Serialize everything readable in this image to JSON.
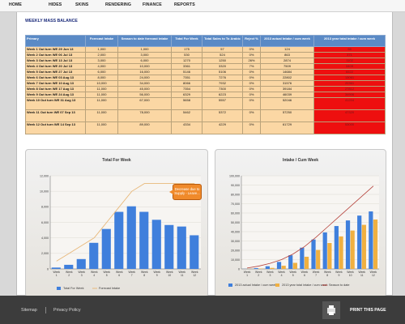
{
  "nav": {
    "items": [
      "HOME",
      "HIDES",
      "SKINS",
      "RENDERING",
      "FINANCE",
      "REPORTS"
    ]
  },
  "page": {
    "title": "WEEKLY MASS BALANCE"
  },
  "table": {
    "headers": [
      "Primary",
      "Forecast Intake",
      "Season to date forecast intake",
      "Total For Week",
      "Total Sales to To Arabic",
      "Reject %",
      "2013 actual Intake / cum week",
      "2013 year total intake / cum week"
    ],
    "rows": [
      [
        "Week 1 Out turn WE 29 Jun 13",
        "1,000",
        "1,000",
        "175",
        "57",
        "0%",
        "124",
        "98"
      ],
      [
        "Week 2 Out turn WE 06 Jul 13",
        "2,000",
        "3,000",
        "530",
        "524",
        "0%",
        "863",
        "371"
      ],
      [
        "Week 3 Out turn WE 13 Jul 13",
        "3,000",
        "6,000",
        "1270",
        "1250",
        "26%",
        "2874",
        "1102"
      ],
      [
        "Week 4 Out turn WE 20 Jul 13",
        "4,000",
        "10,000",
        "3361",
        "3320",
        "7%",
        "7509",
        "3409"
      ],
      [
        "Week 5 Out turn WE 27 Jul 13",
        "6,000",
        "16,000",
        "5146",
        "5106",
        "0%",
        "14684",
        "6522"
      ],
      [
        "Week 6 Out turn WE 03 Aug 13",
        "8,000",
        "24,000",
        "7351",
        "7276",
        "0%",
        "22802",
        "13061"
      ],
      [
        "Week 7 Out turn WE 10 Aug 13",
        "10,000",
        "34,000",
        "8066",
        "7932",
        "0%",
        "31576",
        "20361"
      ],
      [
        "Week 8 Out turn WE 17 Aug 13",
        "11,000",
        "45,000",
        "7354",
        "7300",
        "0%",
        "39184",
        "27812"
      ],
      [
        "Week 9 Out turn WE 24 Aug 13",
        "11,000",
        "56,000",
        "6329",
        "6223",
        "0%",
        "46039",
        "34906"
      ],
      [
        "Week 10 Out turn WE 31 Aug 13",
        "11,000",
        "67,000",
        "5658",
        "5557",
        "0%",
        "52046",
        "41204"
      ],
      [
        "Week 11 Out turn WE 07 Sep 13",
        "11,000",
        "78,000",
        "5462",
        "5372",
        "0%",
        "57250",
        "47320"
      ],
      [
        "Week 12 Out turn WE 14 Sep 13",
        "11,000",
        "89,000",
        "4334",
        "4229",
        "0%",
        "61729",
        "53000"
      ]
    ]
  },
  "callout": {
    "text": "Decrease due to Supply - Leave..."
  },
  "chart_data": [
    {
      "type": "bar",
      "title": "Total For Week",
      "categories": [
        "Week 1",
        "Week 2",
        "Week 3",
        "Week 4",
        "Week 5",
        "Week 6",
        "Week 7",
        "Week 8",
        "Week 9",
        "Week 10",
        "Week 11",
        "Week 12"
      ],
      "ylim": [
        0,
        12000
      ],
      "yticks": [
        "0",
        "2,000",
        "4,000",
        "6,000",
        "8,000",
        "10,000",
        "12,000"
      ],
      "series": [
        {
          "name": "Total For Week",
          "kind": "bar",
          "color": "#3f7fdc",
          "values": [
            175,
            530,
            1270,
            3361,
            5146,
            7351,
            8066,
            7354,
            6329,
            5658,
            5462,
            4334
          ]
        },
        {
          "name": "Forecast Intake",
          "kind": "line",
          "color": "#e8b87a",
          "values": [
            1000,
            2000,
            3000,
            4000,
            6000,
            8000,
            10000,
            11000,
            11000,
            11000,
            11000,
            11000
          ]
        }
      ],
      "legend": "bottom"
    },
    {
      "type": "bar",
      "title": "Intake / Cum Week",
      "categories": [
        "Week 1",
        "Week 2",
        "Week 3",
        "Week 4",
        "Week 5",
        "Week 6",
        "Week 7",
        "Week 8",
        "Week 9",
        "Week 10",
        "Week 11",
        "Week 12"
      ],
      "ylim": [
        0,
        100000
      ],
      "yticks": [
        "0",
        "10,000",
        "20,000",
        "30,000",
        "40,000",
        "50,000",
        "60,000",
        "70,000",
        "80,000",
        "90,000",
        "100,000"
      ],
      "series": [
        {
          "name": "2013 actual Intake / cum week",
          "kind": "bar",
          "color": "#3f7fdc",
          "values": [
            124,
            863,
            2874,
            7509,
            14684,
            22802,
            31576,
            39184,
            46039,
            52046,
            57250,
            61729
          ]
        },
        {
          "name": "2013 year total intake / cum week",
          "kind": "bar",
          "color": "#f0b040",
          "values": [
            98,
            371,
            1102,
            3409,
            6522,
            13061,
            20361,
            27812,
            34906,
            41204,
            47320,
            53000
          ]
        },
        {
          "name": "Season to date",
          "kind": "line",
          "color": "#b5413a",
          "values": [
            1000,
            3000,
            6000,
            10000,
            16000,
            24000,
            34000,
            45000,
            56000,
            67000,
            78000,
            89000
          ]
        }
      ],
      "legend": "bottom"
    }
  ],
  "footer": {
    "sitemap": "Sitemap",
    "privacy": "Privacy Policy",
    "print": "PRINT THIS PAGE"
  }
}
